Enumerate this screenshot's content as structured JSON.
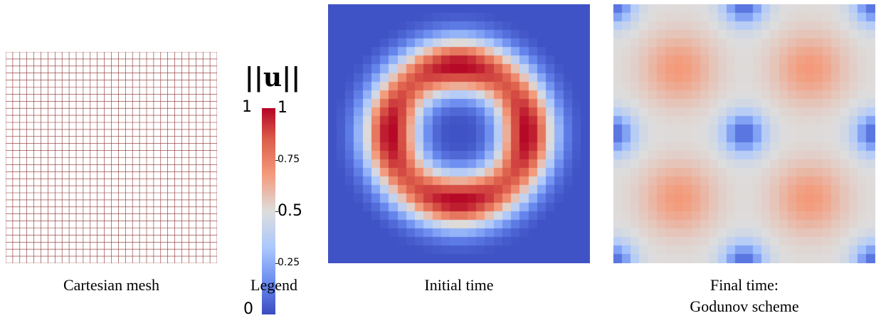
{
  "panels": {
    "mesh": {
      "caption": "Cartesian mesh",
      "grid_cells": 30,
      "line_color": "#8b2b2b"
    },
    "legend": {
      "caption": "Legend",
      "title": "||u||",
      "ticks": [
        {
          "value": 1,
          "label": "1"
        },
        {
          "value": 0.75,
          "label": "0.75"
        },
        {
          "value": 0.5,
          "label": "0.5"
        },
        {
          "value": 0.25,
          "label": "0.25"
        },
        {
          "value": 0,
          "label": "0"
        }
      ],
      "top_left_label": "1",
      "colormap": [
        "#3b4cc0",
        "#6788ee",
        "#aac7fd",
        "#dddddd",
        "#f49a7b",
        "#dc5d4a",
        "#b40426"
      ]
    },
    "initial": {
      "caption": "Initial time",
      "grid_cells": 30
    },
    "final": {
      "caption_line1": "Final time:",
      "caption_line2": "Godunov scheme",
      "grid_cells": 30
    }
  }
}
